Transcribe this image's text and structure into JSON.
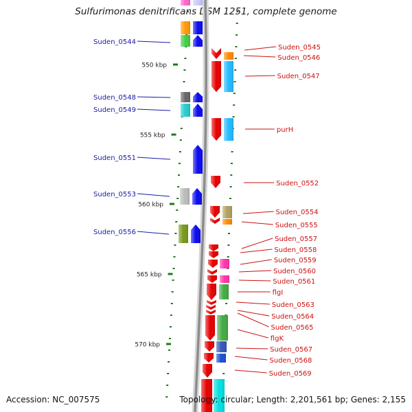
{
  "title": "Sulfurimonas denitrificans DSM 1251, complete genome",
  "footer": {
    "accession": "Accession: NC_007575",
    "topology": "Topology: circular; Length: 2,201,561 bp; Genes: 2,155"
  },
  "scale": {
    "unit": "kbp",
    "ticks": [
      550,
      555,
      560,
      565,
      570
    ],
    "tick_labels": [
      "550 kbp",
      "555 kbp",
      "560 kbp",
      "565 kbp",
      "570 kbp"
    ]
  },
  "colors": {
    "left_label": "#1a1aa8",
    "right_label": "#cc1010",
    "forward_gene": "#0a0af0",
    "reverse_gene": "#e60000",
    "tick": "#1a7a1a"
  },
  "left_labels": [
    "Suden_0544",
    "Suden_0548",
    "Suden_0549",
    "Suden_0551",
    "Suden_0553",
    "Suden_0556"
  ],
  "right_labels": [
    "Suden_0545",
    "Suden_0546",
    "Suden_0547",
    "purH",
    "Suden_0552",
    "Suden_0554",
    "Suden_0555",
    "Suden_0557",
    "Suden_0558",
    "Suden_0559",
    "Suden_0560",
    "Suden_0561",
    "flgI",
    "Suden_0563",
    "Suden_0564",
    "Suden_0565",
    "flgK",
    "Suden_0567",
    "Suden_0568",
    "Suden_0569"
  ]
}
